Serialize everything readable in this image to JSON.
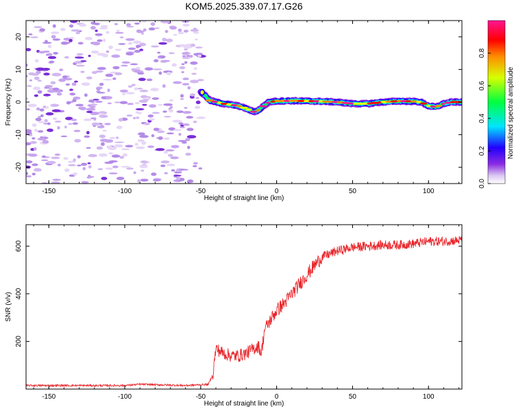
{
  "title": "KOM5.2025.339.07.17.G26",
  "chart_data": [
    {
      "type": "heatmap",
      "name": "spectrogram",
      "xlabel": "Height of straight line (km)",
      "ylabel": "Frequency (Hz)",
      "xlim": [
        -165,
        122
      ],
      "ylim": [
        -25,
        25
      ],
      "xticks": [
        -150,
        -100,
        -50,
        0,
        50,
        100
      ],
      "yticks": [
        -20,
        -10,
        0,
        10,
        20
      ],
      "colorbar": {
        "label": "Normalized spectral amplitude",
        "range": [
          0,
          1
        ],
        "ticks": [
          0.0,
          0.2,
          0.4,
          0.6,
          0.8
        ]
      },
      "trace": {
        "description_points_x": [
          -50,
          -47,
          -44,
          -40,
          -35,
          -30,
          -25,
          -20,
          -15,
          -12,
          -8,
          -5,
          0,
          10,
          20,
          30,
          40,
          50,
          60,
          70,
          80,
          90,
          95,
          100,
          105,
          110,
          115,
          122
        ],
        "description_points_y": [
          3,
          2,
          0.5,
          0,
          -0.5,
          -0.8,
          -1.2,
          -2,
          -3,
          -2.5,
          -1,
          0,
          0.3,
          0.4,
          0.3,
          0.2,
          0,
          -0.5,
          -0.5,
          0,
          0.3,
          0.2,
          0,
          -1.2,
          -1.5,
          -0.5,
          0,
          0
        ]
      }
    },
    {
      "type": "line",
      "name": "snr",
      "xlabel": "Height of straight line (km)",
      "ylabel": "SNR (v/v)",
      "xlim": [
        -165,
        122
      ],
      "ylim": [
        0,
        690
      ],
      "xticks": [
        -150,
        -100,
        -50,
        0,
        50,
        100
      ],
      "yticks": [
        200,
        400,
        600
      ],
      "series": [
        {
          "name": "SNR",
          "color": "#e8262b",
          "x": [
            -165,
            -100,
            -90,
            -60,
            -45,
            -42,
            -40,
            -35,
            -30,
            -25,
            -20,
            -15,
            -12,
            -10,
            -8,
            -5,
            0,
            5,
            10,
            15,
            20,
            25,
            30,
            40,
            50,
            60,
            70,
            80,
            90,
            100,
            110,
            122
          ],
          "y": [
            15,
            15,
            20,
            15,
            20,
            60,
            170,
            150,
            140,
            140,
            150,
            170,
            180,
            150,
            250,
            280,
            330,
            360,
            400,
            440,
            480,
            520,
            555,
            580,
            595,
            600,
            605,
            605,
            610,
            620,
            620,
            625
          ]
        }
      ]
    }
  ]
}
